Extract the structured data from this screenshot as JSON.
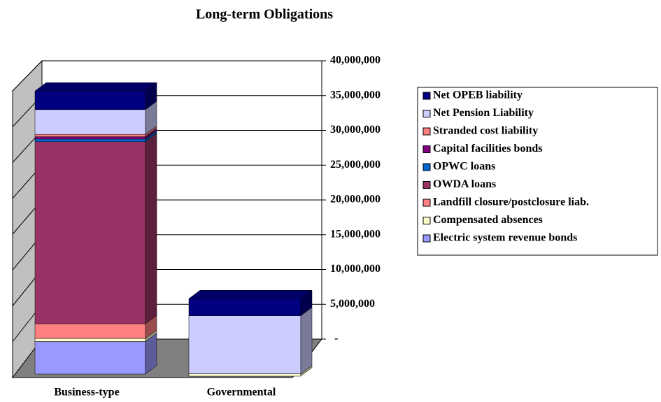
{
  "chart_data": {
    "type": "bar3d_stacked",
    "title": "Long-term Obligations",
    "categories": [
      "Business-type",
      "Governmental"
    ],
    "series": [
      {
        "name": "Electric system revenue bonds",
        "color": "#9999ff",
        "values": [
          4200000,
          0
        ]
      },
      {
        "name": "Compensated absences",
        "color": "#ffffcc",
        "values": [
          400000,
          300000
        ]
      },
      {
        "name": "Landfill closure/postclosure liab.",
        "color": "#ff8080",
        "values": [
          1900000,
          0
        ]
      },
      {
        "name": "OWDA loans",
        "color": "#993366",
        "values": [
          23500000,
          0
        ]
      },
      {
        "name": "OPWC loans",
        "color": "#0066cc",
        "values": [
          350000,
          0
        ]
      },
      {
        "name": "Capital facilities bonds",
        "color": "#800080",
        "values": [
          300000,
          0
        ]
      },
      {
        "name": "Stranded cost liability",
        "color": "#ff8080",
        "values": [
          300000,
          0
        ]
      },
      {
        "name": "Net Pension Liability",
        "color": "#ccccff",
        "values": [
          3200000,
          7500000
        ]
      },
      {
        "name": "Net OPEB liability",
        "color": "#000080",
        "values": [
          2400000,
          2200000
        ]
      }
    ],
    "ylim": [
      0,
      40000000
    ],
    "yticks": [
      {
        "value": 0,
        "label": "-"
      },
      {
        "value": 5000000,
        "label": "5,000,000"
      },
      {
        "value": 10000000,
        "label": "10,000,000"
      },
      {
        "value": 15000000,
        "label": "15,000,000"
      },
      {
        "value": 20000000,
        "label": "20,000,000"
      },
      {
        "value": 25000000,
        "label": "25,000,000"
      },
      {
        "value": 30000000,
        "label": "30,000,000"
      },
      {
        "value": 35000000,
        "label": "35,000,000"
      },
      {
        "value": 40000000,
        "label": "40,000,000"
      }
    ],
    "grid": true,
    "legend": "right"
  }
}
